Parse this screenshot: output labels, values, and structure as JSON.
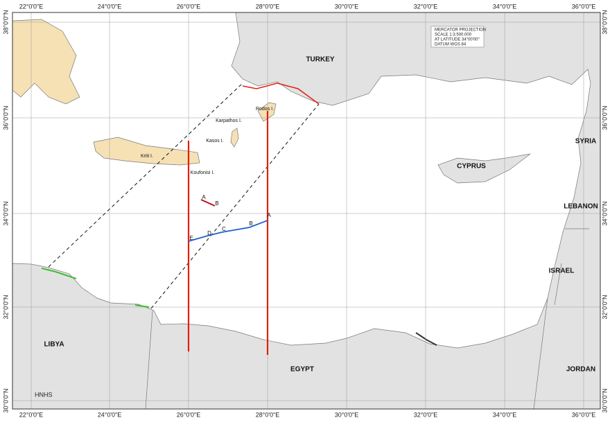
{
  "grid": {
    "longitudes": [
      "22°0'0\"E",
      "24°0'0\"E",
      "26°0'0\"E",
      "28°0'0\"E",
      "30°0'0\"E",
      "32°0'0\"E",
      "34°0'0\"E",
      "36°0'0\"E"
    ],
    "latitudes": [
      "38°0'0\"N",
      "36°0'0\"N",
      "34°0'0\"N",
      "32°0'0\"N",
      "30°0'0\"N"
    ]
  },
  "info_box": [
    "MERCATOR PROJECTION",
    "SCALE 1:3.500.000",
    "AT LATITUDE 34°00'00\"",
    "DATUM WGS 84"
  ],
  "countries": [
    "TURKEY",
    "CYPRUS",
    "SYRIA",
    "LEBANON",
    "ISRAEL",
    "JORDAN",
    "EGYPT",
    "LIBYA"
  ],
  "islands": [
    "Kriti I.",
    "Karpathos I.",
    "Kasos I.",
    "Rodos I.",
    "Koufonisi I."
  ],
  "points": {
    "blue": [
      "A",
      "B",
      "C",
      "D",
      "E"
    ],
    "red": [
      "A",
      "B"
    ]
  },
  "credit": "HNHS"
}
